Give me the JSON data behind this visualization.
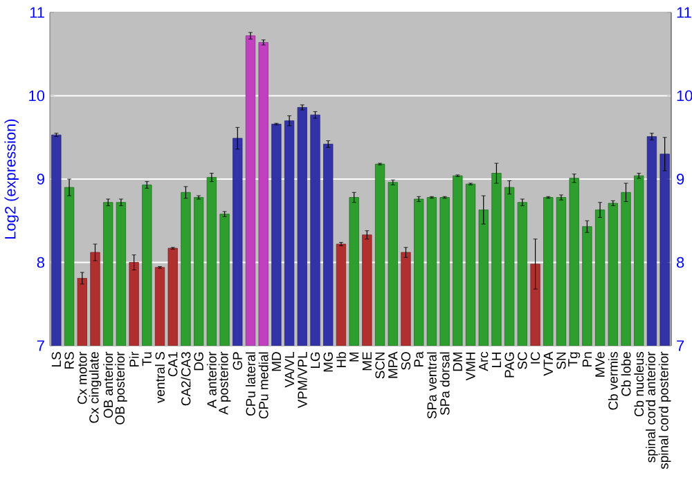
{
  "chart_data": {
    "type": "bar",
    "ylabel": "Log2 (expression)",
    "categories": [
      "LS",
      "RS",
      "Cx motor",
      "Cx cingulate",
      "OB anterior",
      "OB posterior",
      "Pir",
      "Tu",
      "ventral S",
      "CA1",
      "CA2/CA3",
      "DG",
      "A anterior",
      "A posterior",
      "GP",
      "CPu lateral",
      "CPu medial",
      "MD",
      "VA/VL",
      "VPM/VPL",
      "LG",
      "MG",
      "Hb",
      "M",
      "ME",
      "SCN",
      "MPA",
      "SO",
      "Pa",
      "SPa ventral",
      "SPa dorsal",
      "DM",
      "VMH",
      "Arc",
      "LH",
      "PAG",
      "SC",
      "IC",
      "VTA",
      "SN",
      "Tg",
      "Pn",
      "MVe",
      "Cb vermis",
      "Cb lobe",
      "Cb nucleus",
      "spinal cord anterior",
      "spinal cord posterior"
    ],
    "values": [
      9.53,
      8.9,
      7.81,
      8.12,
      8.72,
      8.72,
      8.0,
      8.93,
      7.94,
      8.17,
      8.84,
      8.78,
      9.02,
      8.58,
      9.49,
      10.72,
      10.64,
      9.66,
      9.7,
      9.86,
      9.77,
      9.42,
      8.22,
      8.78,
      8.33,
      9.18,
      8.96,
      8.12,
      8.76,
      8.78,
      8.78,
      9.04,
      8.94,
      8.63,
      9.07,
      8.9,
      8.72,
      7.98,
      8.78,
      8.78,
      9.01,
      8.43,
      8.63,
      8.71,
      8.84,
      9.04,
      9.51,
      9.3
    ],
    "errors": [
      0.02,
      0.1,
      0.07,
      0.1,
      0.04,
      0.04,
      0.09,
      0.04,
      0.01,
      0.01,
      0.07,
      0.02,
      0.05,
      0.03,
      0.13,
      0.04,
      0.03,
      0.01,
      0.06,
      0.03,
      0.04,
      0.04,
      0.02,
      0.06,
      0.05,
      0.01,
      0.03,
      0.06,
      0.03,
      0.01,
      0.01,
      0.01,
      0.01,
      0.17,
      0.12,
      0.08,
      0.04,
      0.3,
      0.01,
      0.03,
      0.05,
      0.07,
      0.09,
      0.03,
      0.11,
      0.03,
      0.04,
      0.2
    ],
    "colors": [
      "#3333a8",
      "#2e9e2e",
      "#b03030",
      "#b03030",
      "#2e9e2e",
      "#2e9e2e",
      "#b03030",
      "#2e9e2e",
      "#b03030",
      "#b03030",
      "#2e9e2e",
      "#2e9e2e",
      "#2e9e2e",
      "#2e9e2e",
      "#3333a8",
      "#c040c0",
      "#c040c0",
      "#3333a8",
      "#3333a8",
      "#3333a8",
      "#3333a8",
      "#3333a8",
      "#b03030",
      "#2e9e2e",
      "#b03030",
      "#2e9e2e",
      "#2e9e2e",
      "#b03030",
      "#2e9e2e",
      "#2e9e2e",
      "#2e9e2e",
      "#2e9e2e",
      "#2e9e2e",
      "#2e9e2e",
      "#2e9e2e",
      "#2e9e2e",
      "#2e9e2e",
      "#b03030",
      "#2e9e2e",
      "#2e9e2e",
      "#2e9e2e",
      "#2e9e2e",
      "#2e9e2e",
      "#2e9e2e",
      "#2e9e2e",
      "#2e9e2e",
      "#3333a8",
      "#3333a8"
    ],
    "ylim": [
      7,
      11
    ],
    "yticks": [
      7,
      8,
      9,
      10,
      11
    ],
    "y2lim": [
      7,
      11
    ],
    "y2ticks": [
      7,
      8,
      9,
      10,
      11
    ],
    "grid": "y"
  }
}
